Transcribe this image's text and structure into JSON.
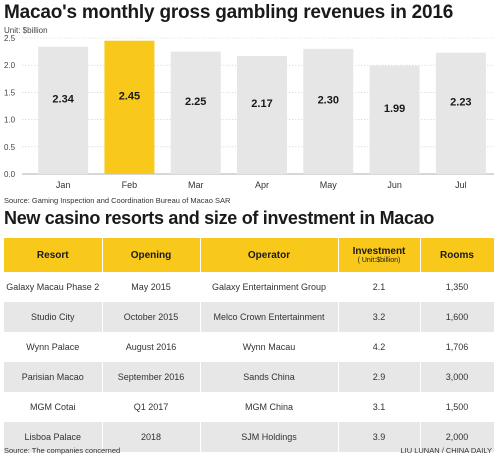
{
  "chart": {
    "title": "Macao's monthly gross gambling revenues in 2016",
    "unit": "Unit: $billion",
    "source": "Source: Gaming Inspection and Coordination Bureau of Macao SAR"
  },
  "chart_data": {
    "type": "bar",
    "title": "Macao's monthly gross gambling revenues in 2016",
    "categories": [
      "Jan",
      "Feb",
      "Mar",
      "Apr",
      "May",
      "Jun",
      "Jul"
    ],
    "values": [
      2.34,
      2.45,
      2.25,
      2.17,
      2.3,
      1.99,
      2.23
    ],
    "value_labels": [
      "2.34",
      "2.45",
      "2.25",
      "2.17",
      "2.30",
      "1.99",
      "2.23"
    ],
    "yticks": [
      "0.0",
      "0.5",
      "1.0",
      "1.5",
      "2.0",
      "2.5"
    ],
    "ylim": [
      0,
      2.5
    ],
    "highlight": "Feb",
    "colors": {
      "bar": "#e6e6e6",
      "highlight": "#f8c81a",
      "grid": "#cfcfcf"
    }
  },
  "table": {
    "title": "New casino resorts and size of investment in Macao",
    "headers": {
      "resort": "Resort",
      "opening": "Opening",
      "operator": "Operator",
      "investment": "Investment",
      "investment_unit": "( Unit:$billion)",
      "rooms": "Rooms"
    },
    "rows": [
      {
        "resort": "Galaxy Macau Phase 2",
        "opening": "May 2015",
        "operator": "Galaxy Entertainment Group",
        "investment": "2.1",
        "rooms": "1,350"
      },
      {
        "resort": "Studio City",
        "opening": "October 2015",
        "operator": "Melco Crown Entertainment",
        "investment": "3.2",
        "rooms": "1,600"
      },
      {
        "resort": "Wynn Palace",
        "opening": "August 2016",
        "operator": "Wynn Macau",
        "investment": "4.2",
        "rooms": "1,706"
      },
      {
        "resort": "Parisian Macao",
        "opening": "September 2016",
        "operator": "Sands China",
        "investment": "2.9",
        "rooms": "3,000"
      },
      {
        "resort": "MGM Cotai",
        "opening": "Q1 2017",
        "operator": "MGM China",
        "investment": "3.1",
        "rooms": "1,500"
      },
      {
        "resort": "Lisboa Palace",
        "opening": "2018",
        "operator": "SJM Holdings",
        "investment": "3.9",
        "rooms": "2,000"
      }
    ],
    "source": "Source: The companies concerned",
    "credit": "LIU LUNAN / CHINA DAILY",
    "header_color": "#f8c81a"
  }
}
